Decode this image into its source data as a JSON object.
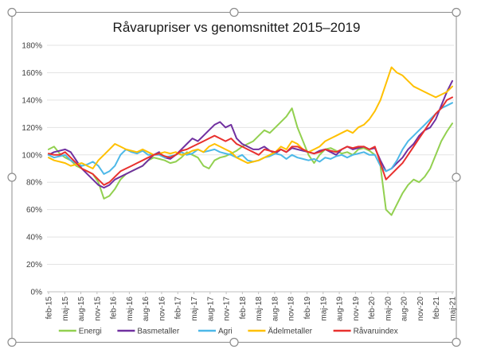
{
  "chart_data": {
    "type": "line",
    "title": "Råvarupriser vs genomsnittet 2015–2019",
    "xlabel": "",
    "ylabel": "",
    "ylim": [
      0,
      180
    ],
    "yticks": [
      0,
      20,
      40,
      60,
      80,
      100,
      120,
      140,
      160,
      180
    ],
    "ytick_labels": [
      "0%",
      "20%",
      "40%",
      "60%",
      "80%",
      "100%",
      "120%",
      "140%",
      "160%",
      "180%"
    ],
    "x_tick_labels": [
      "feb-15",
      "maj-15",
      "aug-15",
      "nov-15",
      "feb-16",
      "maj-16",
      "aug-16",
      "nov-16",
      "feb-17",
      "maj-17",
      "aug-17",
      "nov-17",
      "feb-18",
      "maj-18",
      "aug-18",
      "nov-18",
      "feb-19",
      "maj-19",
      "aug-19",
      "nov-19",
      "feb-20",
      "maj-20",
      "aug-20",
      "nov-20",
      "feb-21",
      "maj-21"
    ],
    "grid": true,
    "legend_position": "bottom",
    "series": [
      {
        "name": "Energi",
        "color": "#92d050",
        "values": [
          104,
          106,
          101,
          98,
          96,
          92,
          90,
          88,
          86,
          80,
          68,
          70,
          75,
          82,
          86,
          88,
          90,
          92,
          96,
          98,
          97,
          96,
          94,
          95,
          98,
          102,
          100,
          98,
          92,
          90,
          96,
          98,
          99,
          101,
          103,
          106,
          108,
          110,
          114,
          118,
          116,
          120,
          124,
          128,
          134,
          120,
          110,
          100,
          94,
          100,
          104,
          105,
          103,
          101,
          102,
          100,
          104,
          105,
          103,
          100,
          92,
          60,
          56,
          64,
          72,
          78,
          82,
          80,
          84,
          90,
          100,
          110,
          117,
          123
        ]
      },
      {
        "name": "Basmetaller",
        "color": "#7030a0",
        "values": [
          100,
          102,
          103,
          104,
          102,
          96,
          90,
          86,
          82,
          78,
          76,
          78,
          82,
          84,
          86,
          88,
          90,
          92,
          96,
          100,
          102,
          98,
          97,
          100,
          104,
          108,
          112,
          110,
          114,
          118,
          122,
          124,
          120,
          122,
          112,
          108,
          106,
          104,
          104,
          106,
          103,
          101,
          104,
          102,
          105,
          104,
          103,
          102,
          101,
          103,
          104,
          102,
          100,
          104,
          106,
          104,
          105,
          106,
          104,
          105,
          96,
          88,
          90,
          94,
          98,
          104,
          108,
          114,
          118,
          120,
          126,
          136,
          146,
          154
        ]
      },
      {
        "name": "Agri",
        "color": "#4db8e8",
        "values": [
          100,
          98,
          99,
          100,
          96,
          94,
          92,
          93,
          95,
          92,
          86,
          88,
          92,
          100,
          104,
          102,
          101,
          103,
          100,
          100,
          100,
          98,
          99,
          100,
          102,
          100,
          101,
          104,
          102,
          103,
          104,
          102,
          101,
          100,
          98,
          100,
          96,
          95,
          96,
          98,
          99,
          101,
          100,
          97,
          100,
          98,
          97,
          96,
          97,
          95,
          98,
          97,
          99,
          100,
          98,
          100,
          101,
          102,
          100,
          100,
          92,
          88,
          90,
          96,
          104,
          110,
          114,
          118,
          122,
          126,
          130,
          134,
          136,
          138
        ]
      },
      {
        "name": "Ädelmetaller",
        "color": "#ffc000",
        "values": [
          98,
          96,
          95,
          94,
          92,
          93,
          94,
          92,
          90,
          96,
          100,
          104,
          108,
          106,
          104,
          103,
          102,
          104,
          102,
          100,
          101,
          102,
          101,
          102,
          100,
          101,
          103,
          104,
          102,
          106,
          108,
          106,
          104,
          102,
          98,
          96,
          94,
          95,
          96,
          98,
          100,
          102,
          106,
          104,
          110,
          108,
          104,
          102,
          104,
          106,
          110,
          112,
          114,
          116,
          118,
          116,
          120,
          122,
          126,
          132,
          140,
          152,
          164,
          160,
          158,
          154,
          150,
          148,
          146,
          144,
          142,
          144,
          146,
          150
        ]
      },
      {
        "name": "Råvaruindex",
        "color": "#e8302e",
        "values": [
          101,
          100,
          100,
          102,
          98,
          94,
          90,
          88,
          86,
          82,
          78,
          80,
          84,
          88,
          90,
          92,
          94,
          96,
          98,
          100,
          101,
          99,
          98,
          100,
          103,
          104,
          106,
          108,
          110,
          112,
          114,
          112,
          110,
          112,
          108,
          106,
          104,
          102,
          100,
          104,
          103,
          102,
          104,
          102,
          106,
          106,
          104,
          102,
          101,
          102,
          104,
          103,
          102,
          104,
          106,
          105,
          106,
          106,
          104,
          106,
          94,
          82,
          86,
          90,
          94,
          100,
          106,
          112,
          118,
          124,
          130,
          134,
          140,
          142
        ]
      }
    ]
  }
}
